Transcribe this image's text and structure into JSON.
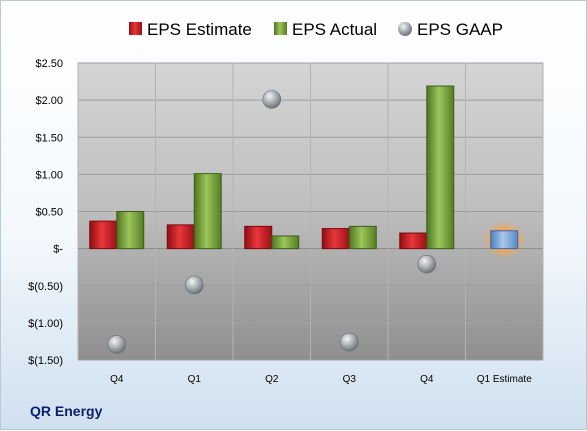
{
  "company": "QR Energy",
  "colors": {
    "estimate": "#d42027",
    "actual": "#7aa33a",
    "gaap": "#9fa3a8",
    "future_estimate": "#7fa8dc",
    "future_glow": "#f6a64a"
  },
  "chart_data": {
    "type": "bar",
    "categories": [
      "Q4",
      "Q1",
      "Q2",
      "Q3",
      "Q4",
      "Q1 Estimate"
    ],
    "series": [
      {
        "name": "EPS Estimate",
        "marker": "bar",
        "values": [
          0.37,
          0.32,
          0.3,
          0.27,
          0.21,
          0.24
        ]
      },
      {
        "name": "EPS Actual",
        "marker": "bar",
        "values": [
          0.5,
          1.01,
          0.17,
          0.3,
          2.19,
          null
        ]
      },
      {
        "name": "EPS GAAP",
        "marker": "sphere",
        "values": [
          -1.29,
          -0.49,
          2.01,
          -1.26,
          -0.21,
          null
        ]
      }
    ],
    "yticks": [
      "$2.50",
      "$2.00",
      "$1.50",
      "$1.00",
      "$0.50",
      "$-",
      "$(0.50)",
      "$(1.00)",
      "$(1.50)"
    ],
    "ytick_values": [
      2.5,
      2.0,
      1.5,
      1.0,
      0.5,
      0,
      -0.5,
      -1.0,
      -1.5
    ],
    "ylim": [
      -1.5,
      2.5
    ],
    "legend_position": "top",
    "grid": true
  }
}
